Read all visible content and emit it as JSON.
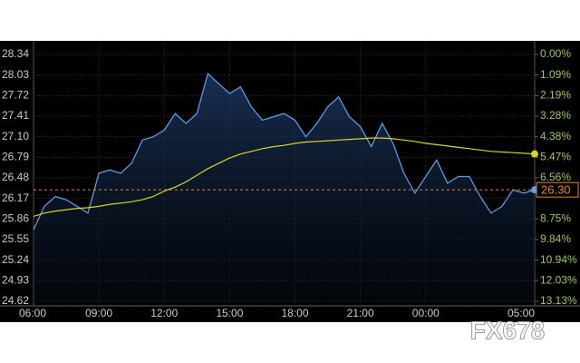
{
  "chart_data": {
    "type": "line",
    "categories": [
      "06:00",
      null,
      null,
      null,
      null,
      null,
      "09:00",
      null,
      null,
      null,
      null,
      null,
      "12:00",
      null,
      null,
      null,
      null,
      null,
      "15:00",
      null,
      null,
      null,
      null,
      null,
      "18:00",
      null,
      null,
      null,
      null,
      null,
      "21:00",
      null,
      null,
      null,
      null,
      null,
      "00:00",
      null,
      null,
      null,
      null,
      null,
      null,
      null,
      null,
      null,
      "05:00"
    ],
    "ylim": [
      24.62,
      28.34
    ],
    "yticks": [
      24.62,
      24.93,
      25.24,
      25.55,
      25.86,
      26.17,
      26.48,
      26.79,
      {
        "value": 27.1,
        "label": "27.10"
      },
      27.41,
      27.72,
      28.03,
      28.34
    ],
    "y2lim": [
      13.13,
      0
    ],
    "y2ticks": [
      {
        "value": 0,
        "label": "0.00%"
      },
      {
        "value": 1.09,
        "label": "1.09%"
      },
      {
        "value": 2.19,
        "label": "2.19%"
      },
      {
        "value": 3.28,
        "label": "3.28%"
      },
      {
        "value": 4.38,
        "label": "4.38%"
      },
      {
        "value": 5.47,
        "label": "5.47%"
      },
      {
        "value": 6.56,
        "label": "6.56%"
      },
      {
        "value": 8.75,
        "label": "8.75%"
      },
      {
        "value": 9.84,
        "label": "9.84%"
      },
      {
        "value": 10.94,
        "label": "10.94%"
      },
      {
        "value": 12.03,
        "label": "12.03%"
      },
      {
        "value": 13.13,
        "label": "13.13%"
      }
    ],
    "grid": true,
    "series": [
      {
        "color": "#5b9be8",
        "values": [
          25.7,
          26.05,
          26.2,
          26.15,
          26.05,
          25.95,
          26.55,
          26.6,
          26.55,
          26.7,
          27.05,
          27.1,
          27.2,
          27.45,
          27.3,
          27.45,
          28.05,
          27.9,
          27.75,
          27.85,
          27.55,
          27.35,
          27.4,
          27.45,
          27.35,
          27.1,
          27.3,
          27.55,
          27.7,
          27.4,
          27.25,
          26.95,
          27.3,
          27.0,
          26.55,
          26.25,
          26.5,
          26.75,
          26.4,
          26.5,
          26.5,
          26.2,
          25.95,
          26.05,
          26.3,
          26.25,
          26.3
        ]
      },
      {
        "color": "#d8d820",
        "values": [
          25.9,
          25.95,
          25.98,
          26.0,
          26.02,
          26.03,
          26.05,
          26.08,
          26.1,
          26.12,
          26.15,
          26.2,
          26.28,
          26.34,
          26.42,
          26.52,
          26.62,
          26.7,
          26.78,
          26.84,
          26.88,
          26.92,
          26.95,
          26.97,
          27.0,
          27.02,
          27.03,
          27.04,
          27.05,
          27.06,
          27.07,
          27.08,
          27.08,
          27.07,
          27.05,
          27.03,
          27.0,
          26.98,
          26.96,
          26.94,
          26.92,
          26.9,
          26.88,
          26.87,
          26.86,
          26.85,
          26.84
        ]
      }
    ],
    "reference_line": {
      "value": 26.3,
      "label": "26.30",
      "color": "#e08a2a"
    },
    "watermark": "FX678"
  }
}
